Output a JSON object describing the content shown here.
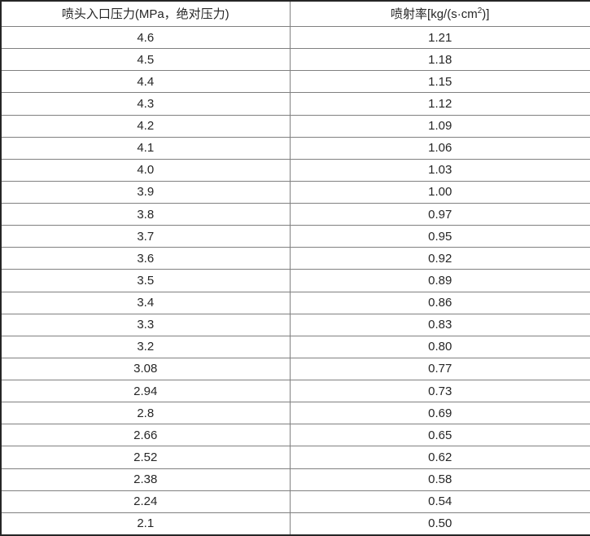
{
  "table": {
    "header": {
      "col1": "喷头入口压力(MPa，绝对压力)",
      "col2_prefix": "喷射率[kg/(s·cm",
      "col2_sup": "2",
      "col2_suffix": ")]"
    },
    "rows": [
      {
        "pressure": "4.6",
        "rate": "1.21"
      },
      {
        "pressure": "4.5",
        "rate": "1.18"
      },
      {
        "pressure": "4.4",
        "rate": "1.15"
      },
      {
        "pressure": "4.3",
        "rate": "1.12"
      },
      {
        "pressure": "4.2",
        "rate": "1.09"
      },
      {
        "pressure": "4.1",
        "rate": "1.06"
      },
      {
        "pressure": "4.0",
        "rate": "1.03"
      },
      {
        "pressure": "3.9",
        "rate": "1.00"
      },
      {
        "pressure": "3.8",
        "rate": "0.97"
      },
      {
        "pressure": "3.7",
        "rate": "0.95"
      },
      {
        "pressure": "3.6",
        "rate": "0.92"
      },
      {
        "pressure": "3.5",
        "rate": "0.89"
      },
      {
        "pressure": "3.4",
        "rate": "0.86"
      },
      {
        "pressure": "3.3",
        "rate": "0.83"
      },
      {
        "pressure": "3.2",
        "rate": "0.80"
      },
      {
        "pressure": "3.08",
        "rate": "0.77"
      },
      {
        "pressure": "2.94",
        "rate": "0.73"
      },
      {
        "pressure": "2.8",
        "rate": "0.69"
      },
      {
        "pressure": "2.66",
        "rate": "0.65"
      },
      {
        "pressure": "2.52",
        "rate": "0.62"
      },
      {
        "pressure": "2.38",
        "rate": "0.58"
      },
      {
        "pressure": "2.24",
        "rate": "0.54"
      },
      {
        "pressure": "2.1",
        "rate": "0.50"
      }
    ],
    "colors": {
      "outer_border": "#262626",
      "grid_line": "#808080",
      "text": "#262626",
      "background": "#ffffff"
    }
  }
}
